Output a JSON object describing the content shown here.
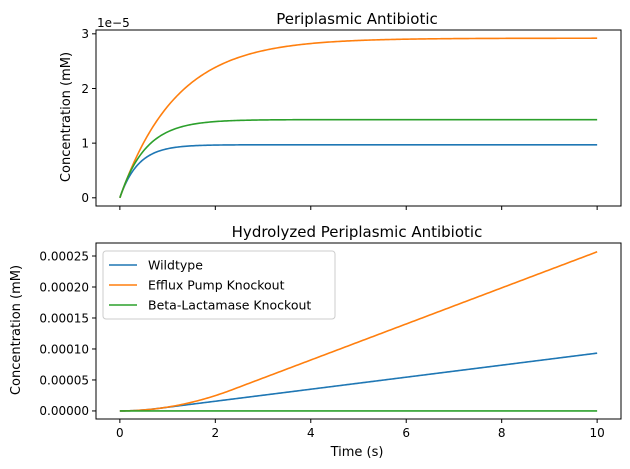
{
  "chart_data": [
    {
      "type": "line",
      "title": "Periplasmic Antibiotic",
      "xlabel": "",
      "ylabel": "Concentration (mM)",
      "y_offset_text": "1e−5",
      "x_ticks": [
        0,
        2,
        4,
        6,
        8,
        10
      ],
      "x_tick_labels_visible": false,
      "y_ticks": [
        0,
        1,
        2,
        3
      ],
      "y_tick_labels": [
        "0",
        "1",
        "2",
        "3"
      ],
      "xlim": [
        -0.5,
        10.5
      ],
      "ylim": [
        -0.15,
        3.07
      ],
      "grid": false,
      "legend": false,
      "series": [
        {
          "color": "#1f77b4",
          "kind": "saturating",
          "plateau": 0.97,
          "rate": 2.6
        },
        {
          "color": "#ff7f0e",
          "kind": "saturating",
          "plateau": 2.92,
          "rate": 0.85
        },
        {
          "color": "#2ca02c",
          "kind": "saturating",
          "plateau": 1.43,
          "rate": 1.85
        }
      ]
    },
    {
      "type": "line",
      "title": "Hydrolyzed Periplasmic Antibiotic",
      "xlabel": "Time (s)",
      "ylabel": "Concentration (mM)",
      "x_ticks": [
        0,
        2,
        4,
        6,
        8,
        10
      ],
      "x_tick_labels": [
        "0",
        "2",
        "4",
        "6",
        "8",
        "10"
      ],
      "y_ticks": [
        0,
        5e-05,
        0.0001,
        0.00015,
        0.0002,
        0.00025
      ],
      "y_tick_labels": [
        "0.00000",
        "0.00005",
        "0.00010",
        "0.00015",
        "0.00020",
        "0.00025"
      ],
      "xlim": [
        -0.5,
        10.5
      ],
      "ylim": [
        -1.3e-05,
        0.000271
      ],
      "grid": false,
      "legend": "top-left",
      "series": [
        {
          "name": "Wildtype",
          "color": "#1f77b4",
          "kind": "ramp",
          "slope": 9.7e-06,
          "lag": 0.385
        },
        {
          "name": "Efflux Pump Knockout",
          "color": "#ff7f0e",
          "kind": "ramp",
          "slope": 2.91e-05,
          "lag": 1.176
        },
        {
          "name": "Beta-Lactamase Knockout",
          "color": "#2ca02c",
          "kind": "ramp",
          "slope": 0,
          "lag": 0
        }
      ]
    }
  ]
}
